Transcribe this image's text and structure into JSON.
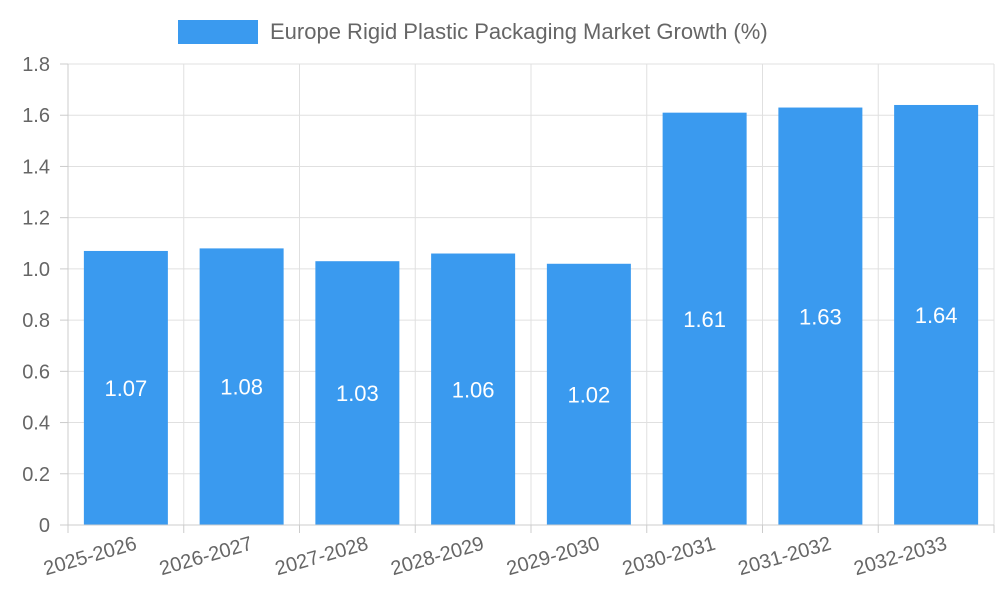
{
  "chart_data": {
    "type": "bar",
    "legend": {
      "position": "top-center",
      "label": "Europe Rigid Plastic Packaging Market Growth (%)"
    },
    "series": [
      {
        "name": "Europe Rigid Plastic Packaging Market Growth (%)",
        "color": "#3a9aef",
        "values": [
          1.07,
          1.08,
          1.03,
          1.06,
          1.02,
          1.61,
          1.63,
          1.64
        ]
      }
    ],
    "categories": [
      "2025-2026",
      "2026-2027",
      "2027-2028",
      "2028-2029",
      "2029-2030",
      "2030-2031",
      "2031-2032",
      "2032-2033"
    ],
    "y_ticks": [
      "0",
      "0.2",
      "0.4",
      "0.6",
      "0.8",
      "1.0",
      "1.2",
      "1.4",
      "1.6",
      "1.8"
    ],
    "ylim": [
      0,
      1.8
    ],
    "grid": true,
    "data_labels": [
      "1.07",
      "1.08",
      "1.03",
      "1.06",
      "1.02",
      "1.61",
      "1.63",
      "1.64"
    ]
  }
}
